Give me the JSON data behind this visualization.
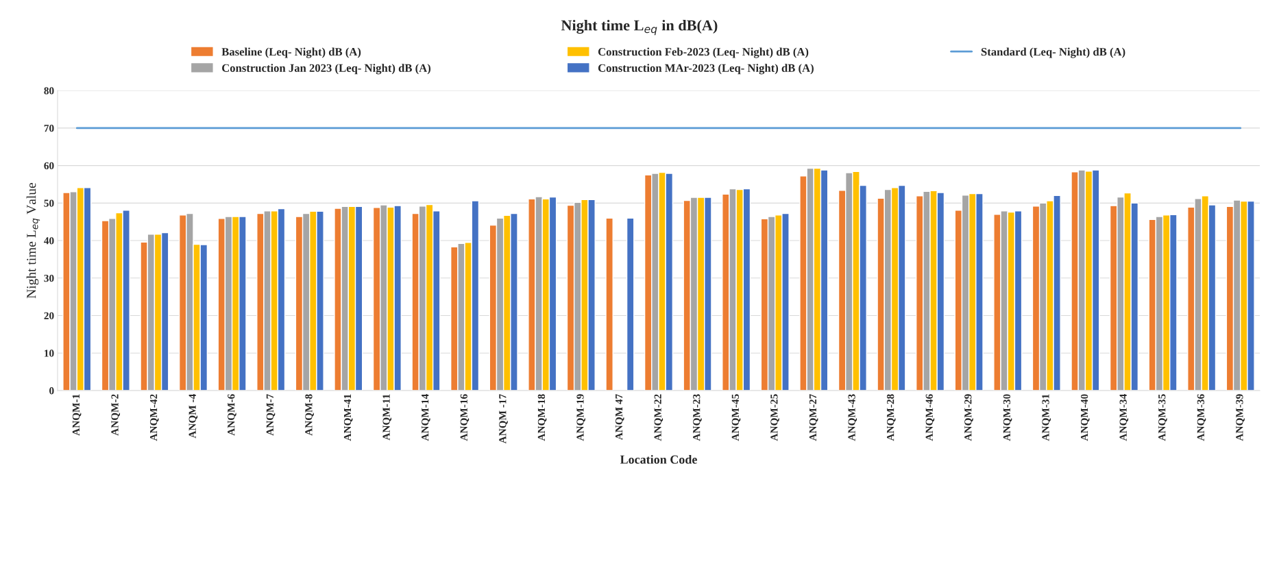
{
  "chart_data": {
    "type": "bar",
    "title": "Night time L$_{eq}$ in dB(A)",
    "xlabel": "Location Code",
    "ylabel": "Night time L$_{eq}$ Value",
    "categories": [
      "ANQM-1",
      "ANQM-2",
      "ANQM-42",
      "ANQM -4",
      "ANQM-6",
      "ANQM-7",
      "ANQM-8",
      "ANQM-41",
      "ANQM-11",
      "ANQM-14",
      "ANQM-16",
      "ANQM -17",
      "ANQM-18",
      "ANQM-19",
      "ANQM 47",
      "ANQM-22",
      "ANQM-23",
      "ANQM-45",
      "ANQM-25",
      "ANQM-27",
      "ANQM-43",
      "ANQM-28",
      "ANQM-46",
      "ANQM-29",
      "ANQM-30",
      "ANQM-31",
      "ANQM-40",
      "ANQM-34",
      "ANQM-35",
      "ANQM-36",
      "ANQM-39"
    ],
    "series": [
      {
        "name": "Baseline (Leq- Night) dB (A)",
        "color": "#ed7d31",
        "values": [
          52.8,
          45.3,
          39.6,
          46.8,
          45.9,
          47.2,
          46.4,
          48.6,
          48.8,
          47.2,
          38.3,
          44.1,
          51.1,
          49.4,
          46.0,
          57.5,
          50.7,
          52.4,
          45.8,
          57.2,
          53.4,
          51.3,
          51.9,
          48.1,
          47.0,
          49.2,
          58.3,
          49.3,
          45.6,
          48.9,
          49.1
        ]
      },
      {
        "name": "Construction Jan 2023 (Leq- Night) dB (A)",
        "color": "#a5a5a5",
        "values": [
          53.0,
          45.9,
          41.7,
          47.2,
          46.4,
          47.9,
          47.2,
          49.1,
          49.5,
          49.2,
          39.2,
          46.0,
          51.7,
          50.2,
          null,
          57.9,
          51.5,
          53.8,
          46.4,
          59.3,
          58.1,
          53.6,
          53.1,
          52.1,
          47.9,
          50.0,
          58.8,
          51.6,
          46.4,
          51.2,
          50.8
        ]
      },
      {
        "name": "Construction Feb-2023 (Leq- Night) dB (A)",
        "color": "#ffc000",
        "values": [
          54.1,
          47.4,
          41.7,
          39.0,
          46.4,
          47.9,
          47.8,
          49.1,
          48.9,
          49.6,
          39.5,
          46.7,
          51.1,
          50.9,
          null,
          58.2,
          51.5,
          53.6,
          46.8,
          59.3,
          58.4,
          54.1,
          53.3,
          52.5,
          47.6,
          50.6,
          58.5,
          52.7,
          46.8,
          51.9,
          50.5
        ]
      },
      {
        "name": "Construction MAr-2023 (Leq- Night) dB (A)",
        "color": "#4472c4",
        "values": [
          54.1,
          48.1,
          42.1,
          38.9,
          46.4,
          48.5,
          47.8,
          49.1,
          49.3,
          47.9,
          50.6,
          47.2,
          51.6,
          50.9,
          46.0,
          57.9,
          51.5,
          53.8,
          47.2,
          58.8,
          54.7,
          54.7,
          52.8,
          52.5,
          47.9,
          52.0,
          58.8,
          50.0,
          46.9,
          49.5,
          50.5
        ]
      },
      {
        "name": "Standard (Leq- Night) dB (A)",
        "type": "line",
        "color": "#5b9bd5",
        "values": [
          70,
          70,
          70,
          70,
          70,
          70,
          70,
          70,
          70,
          70,
          70,
          70,
          70,
          70,
          70,
          70,
          70,
          70,
          70,
          70,
          70,
          70,
          70,
          70,
          70,
          70,
          70,
          70,
          70,
          70,
          70
        ]
      }
    ],
    "ylim": [
      0,
      80
    ],
    "yticks": [
      0,
      10,
      20,
      30,
      40,
      50,
      60,
      70,
      80
    ],
    "grid": "y",
    "legend": "top"
  }
}
